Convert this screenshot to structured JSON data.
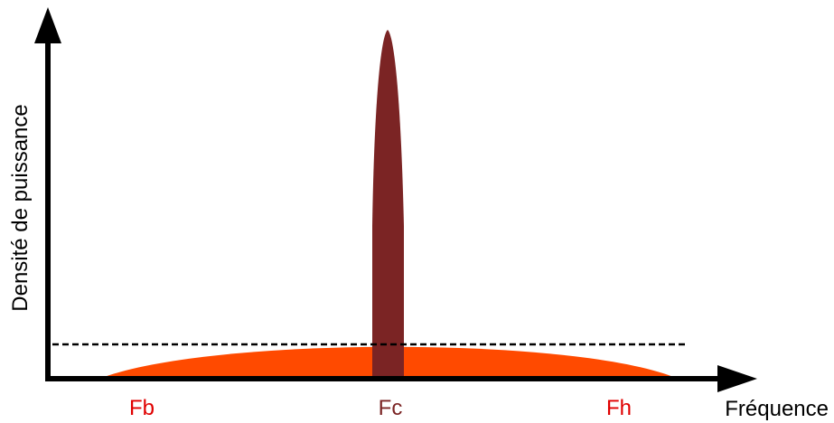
{
  "axes": {
    "x_label": "Fréquence",
    "y_label": "Densité de puissance"
  },
  "markers": {
    "fb": "Fb",
    "fc": "Fc",
    "fh": "Fh"
  },
  "colors": {
    "axis": "#000000",
    "wideband_spectrum": "#ff4a00",
    "narrowband_peak": "#7b2424",
    "fb_label": "#e00000",
    "fc_label": "#7b2424",
    "fh_label": "#e00000",
    "noise_threshold_line": "#000000"
  }
}
